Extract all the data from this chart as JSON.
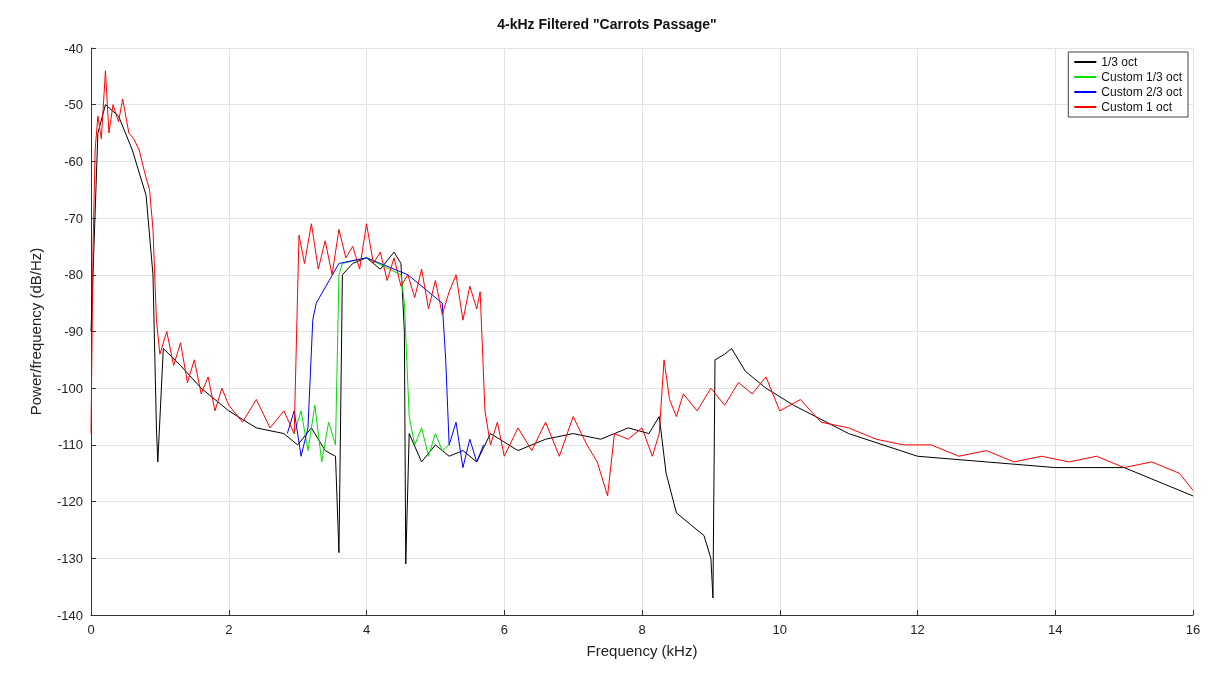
{
  "chart_data": {
    "type": "line",
    "title": "4-kHz Filtered \"Carrots Passage\"",
    "xlabel": "Frequency (kHz)",
    "ylabel": "Power/frequency (dB/Hz)",
    "xlim": [
      0,
      16
    ],
    "xticks": [
      0,
      2,
      4,
      6,
      8,
      10,
      12,
      14,
      16
    ],
    "ylim": [
      -140,
      -40
    ],
    "yticks": [
      -140,
      -130,
      -120,
      -110,
      -100,
      -90,
      -80,
      -70,
      -60,
      -50,
      -40
    ],
    "grid": true,
    "legend": "top right",
    "marker": "none",
    "line_style": "solid",
    "series": [
      {
        "name": "1/3 oct",
        "color": "#000000",
        "x": [
          0,
          0.1,
          0.21,
          0.4,
          0.6,
          0.8,
          0.9,
          0.95,
          0.97,
          1.05,
          1.3,
          1.6,
          2.0,
          2.4,
          2.8,
          3.0,
          3.2,
          3.4,
          3.55,
          3.6,
          3.65,
          3.8,
          4.0,
          4.2,
          4.4,
          4.5,
          4.55,
          4.57,
          4.62,
          4.8,
          5.0,
          5.2,
          5.4,
          5.6,
          5.8,
          6.2,
          6.6,
          7.0,
          7.4,
          7.8,
          8.1,
          8.25,
          8.35,
          8.5,
          8.7,
          8.9,
          9.0,
          9.03,
          9.06,
          9.2,
          9.3,
          9.5,
          9.8,
          10.2,
          11,
          12,
          13,
          14,
          15,
          16
        ],
        "values": [
          -90,
          -55,
          -50,
          -52,
          -58,
          -66,
          -80,
          -107,
          -113,
          -93,
          -96,
          -100,
          -104,
          -107,
          -108,
          -110,
          -107,
          -111,
          -112,
          -129,
          -80,
          -78,
          -77,
          -79,
          -76,
          -78,
          -90,
          -131,
          -108,
          -113,
          -110,
          -112,
          -111,
          -113,
          -108,
          -111,
          -109,
          -108,
          -109,
          -107,
          -108,
          -105,
          -115,
          -122,
          -124,
          -126,
          -130,
          -137,
          -95,
          -94,
          -93,
          -97,
          -100,
          -103,
          -108,
          -112,
          -113,
          -114,
          -114,
          -119
        ]
      },
      {
        "name": "Custom 1/3 oct",
        "color": "#00e000",
        "x": [
          2.95,
          3.05,
          3.15,
          3.25,
          3.35,
          3.45,
          3.55,
          3.6,
          3.65,
          4.0,
          4.5,
          4.55,
          4.62,
          4.7,
          4.8,
          4.9,
          5.0,
          5.1,
          5.2
        ],
        "values": [
          -108,
          -104,
          -111,
          -103,
          -113,
          -106,
          -110,
          -80,
          -78,
          -77,
          -80,
          -85,
          -105,
          -110,
          -107,
          -112,
          -108,
          -111,
          -110
        ]
      },
      {
        "name": "Custom 2/3 oct",
        "color": "#0000ff",
        "x": [
          2.85,
          2.95,
          3.05,
          3.15,
          3.22,
          3.27,
          3.6,
          4.0,
          4.6,
          5.1,
          5.15,
          5.2,
          5.3,
          5.4,
          5.5,
          5.6,
          5.7
        ],
        "values": [
          -108,
          -104,
          -112,
          -107,
          -88,
          -85,
          -78,
          -77,
          -80,
          -85,
          -95,
          -110,
          -106,
          -114,
          -109,
          -113,
          -110
        ]
      },
      {
        "name": "Custom 1 oct",
        "color": "#ff0000",
        "x": [
          0,
          0.03,
          0.06,
          0.1,
          0.15,
          0.21,
          0.26,
          0.32,
          0.4,
          0.46,
          0.55,
          0.62,
          0.7,
          0.78,
          0.85,
          0.9,
          0.95,
          1.0,
          1.1,
          1.2,
          1.3,
          1.4,
          1.5,
          1.6,
          1.7,
          1.8,
          1.9,
          2.0,
          2.2,
          2.4,
          2.6,
          2.8,
          2.95,
          3.02,
          3.1,
          3.2,
          3.3,
          3.4,
          3.5,
          3.6,
          3.7,
          3.8,
          3.9,
          4.0,
          4.1,
          4.2,
          4.3,
          4.4,
          4.5,
          4.6,
          4.7,
          4.8,
          4.9,
          5.0,
          5.1,
          5.2,
          5.3,
          5.4,
          5.5,
          5.6,
          5.65,
          5.72,
          5.8,
          5.9,
          6.0,
          6.2,
          6.4,
          6.6,
          6.8,
          7.0,
          7.2,
          7.35,
          7.5,
          7.6,
          7.8,
          8.0,
          8.15,
          8.25,
          8.32,
          8.4,
          8.5,
          8.6,
          8.8,
          9.0,
          9.2,
          9.4,
          9.6,
          9.8,
          10.0,
          10.3,
          10.6,
          11.0,
          11.4,
          11.8,
          12.2,
          12.6,
          13.0,
          13.4,
          13.8,
          14.2,
          14.6,
          15.0,
          15.4,
          15.8,
          16.0
        ],
        "values": [
          -108,
          -75,
          -58,
          -52,
          -56,
          -44,
          -55,
          -50,
          -53,
          -49,
          -55,
          -56,
          -58,
          -62,
          -65,
          -72,
          -88,
          -94,
          -90,
          -96,
          -92,
          -99,
          -95,
          -101,
          -98,
          -104,
          -100,
          -103,
          -106,
          -102,
          -107,
          -104,
          -108,
          -73,
          -78,
          -71,
          -79,
          -74,
          -80,
          -72,
          -77,
          -75,
          -79,
          -71,
          -78,
          -76,
          -81,
          -77,
          -82,
          -80,
          -84,
          -79,
          -86,
          -81,
          -87,
          -83,
          -80,
          -88,
          -82,
          -86,
          -83,
          -104,
          -110,
          -106,
          -112,
          -107,
          -111,
          -106,
          -112,
          -105,
          -110,
          -113,
          -119,
          -108,
          -109,
          -107,
          -112,
          -108,
          -95,
          -102,
          -105,
          -101,
          -104,
          -100,
          -103,
          -99,
          -101,
          -98,
          -104,
          -102,
          -106,
          -107,
          -109,
          -110,
          -110,
          -112,
          -111,
          -113,
          -112,
          -113,
          -112,
          -114,
          -113,
          -115,
          -118
        ]
      }
    ]
  }
}
